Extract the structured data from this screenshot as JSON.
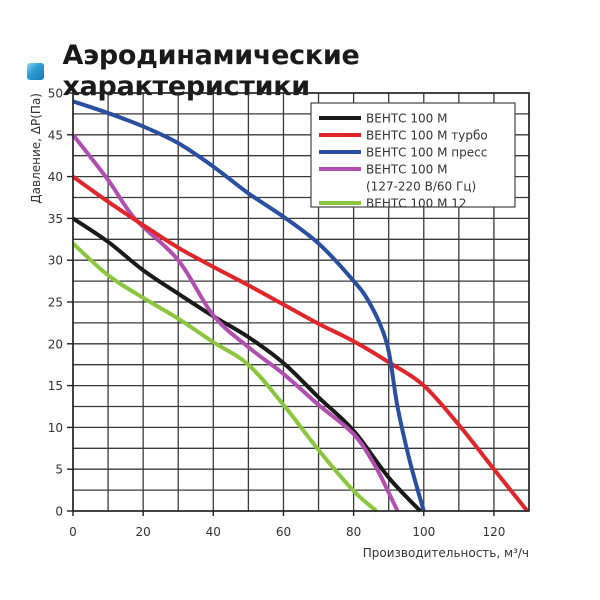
{
  "header": {
    "icon": "blue-square-icon",
    "title": "Аэродинамические характеристики"
  },
  "chart_data": {
    "type": "line",
    "title": "Аэродинамические характеристики",
    "xlabel": "Производительность, м³/ч",
    "ylabel": "Давление, ΔP(Па)",
    "xlim": [
      0,
      130
    ],
    "ylim": [
      0,
      50
    ],
    "xticks": [
      0,
      20,
      40,
      60,
      80,
      100,
      120
    ],
    "yticks": [
      0,
      5,
      10,
      15,
      20,
      25,
      30,
      35,
      40,
      45,
      50
    ],
    "grid": true,
    "grid_x_step": 10,
    "grid_y_step": 2.5,
    "legend_position": "upper right",
    "series": [
      {
        "name": "ВЕНТС 100 М",
        "color": "#1a1a1a",
        "points": [
          [
            0,
            35
          ],
          [
            10,
            32.2
          ],
          [
            20,
            28.8
          ],
          [
            30,
            26
          ],
          [
            40,
            23.3
          ],
          [
            50,
            20.8
          ],
          [
            60,
            17.7
          ],
          [
            70,
            13.6
          ],
          [
            80,
            9.6
          ],
          [
            90,
            4
          ],
          [
            99,
            0
          ]
        ]
      },
      {
        "name": "ВЕНТС 100 М турбо",
        "color": "#e0262b",
        "points": [
          [
            0,
            40
          ],
          [
            10,
            37
          ],
          [
            20,
            34.2
          ],
          [
            30,
            31.5
          ],
          [
            40,
            29.2
          ],
          [
            50,
            27
          ],
          [
            60,
            24.7
          ],
          [
            70,
            22.4
          ],
          [
            80,
            20.3
          ],
          [
            90,
            17.8
          ],
          [
            100,
            15
          ],
          [
            110,
            10.3
          ],
          [
            120,
            5
          ],
          [
            129.5,
            0
          ]
        ]
      },
      {
        "name": "ВЕНТС 100 М пресс",
        "color": "#2a4fa0",
        "points": [
          [
            0,
            49
          ],
          [
            10,
            47.6
          ],
          [
            20,
            46
          ],
          [
            30,
            44
          ],
          [
            40,
            41.2
          ],
          [
            50,
            38
          ],
          [
            60,
            35.2
          ],
          [
            70,
            32
          ],
          [
            79,
            28
          ],
          [
            84.4,
            25
          ],
          [
            89.5,
            20
          ],
          [
            92.5,
            12.5
          ],
          [
            96,
            6
          ],
          [
            100,
            0
          ]
        ]
      },
      {
        "name": "ВЕНТС 100 М\n(127-220 В/60 Гц)",
        "name_line1": "ВЕНТС 100 М",
        "name_line2": "(127-220 В/60 Гц)",
        "color": "#b04fb0",
        "points": [
          [
            0,
            45
          ],
          [
            10,
            39.6
          ],
          [
            17.6,
            35
          ],
          [
            30,
            30
          ],
          [
            40,
            23.4
          ],
          [
            50,
            19.6
          ],
          [
            60,
            16.4
          ],
          [
            70,
            12.7
          ],
          [
            80,
            9.2
          ],
          [
            86,
            5.5
          ],
          [
            90,
            2.2
          ],
          [
            92.5,
            0
          ]
        ]
      },
      {
        "name": "ВЕНТС 100 М 12",
        "color": "#8cc63f",
        "points": [
          [
            0,
            32
          ],
          [
            10,
            28.2
          ],
          [
            20,
            25.5
          ],
          [
            30,
            23
          ],
          [
            40,
            20.2
          ],
          [
            50,
            17.5
          ],
          [
            60,
            12.7
          ],
          [
            70,
            7.3
          ],
          [
            80,
            2.4
          ],
          [
            86.5,
            0
          ]
        ]
      }
    ]
  },
  "legend": {
    "items": [
      {
        "label": "ВЕНТС 100 М",
        "color": "#1a1a1a"
      },
      {
        "label": "ВЕНТС 100 М турбо",
        "color": "#e0262b"
      },
      {
        "label": "ВЕНТС 100 М пресс",
        "color": "#2a4fa0"
      },
      {
        "label": "ВЕНТС 100 М",
        "label2": "(127-220 В/60 Гц)",
        "color": "#b04fb0"
      },
      {
        "label": "ВЕНТС 100 М 12",
        "color": "#8cc63f"
      }
    ]
  }
}
